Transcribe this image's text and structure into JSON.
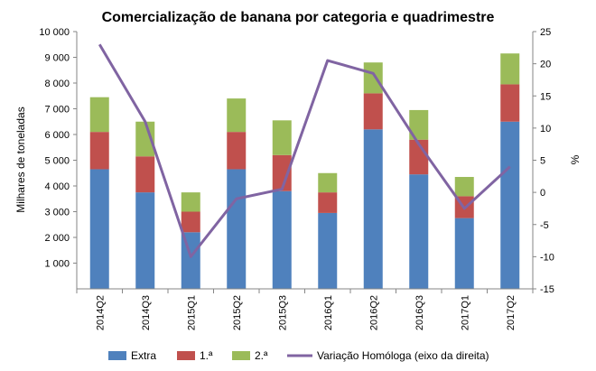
{
  "chart_data": {
    "type": "bar",
    "stacked": true,
    "title": "Comercialização  de banana  por  categoria  e quadrimestre",
    "ylabel": "Milhares de toneladas",
    "y2label": "%",
    "categories": [
      "2014Q2",
      "2014Q3",
      "2015Q1",
      "2015Q2",
      "2015Q3",
      "2016Q1",
      "2016Q2",
      "2016Q3",
      "2017Q1",
      "2017Q2"
    ],
    "ylim": [
      0,
      10000
    ],
    "y2lim": [
      -15,
      25
    ],
    "y_ticks": [
      "1 000",
      "2 000",
      "3 000",
      "4 000",
      "5 000",
      "6 000",
      "7 000",
      "8 000",
      "9 000",
      "10 000"
    ],
    "y2_ticks": [
      "-15",
      "-10",
      "-5",
      "0",
      "5",
      "10",
      "15",
      "20",
      "25"
    ],
    "series": [
      {
        "name": "Extra",
        "color": "#4F81BD",
        "values": [
          4650,
          3750,
          2200,
          4650,
          3800,
          2950,
          6200,
          4450,
          2750,
          6500
        ]
      },
      {
        "name": "1.ª",
        "color": "#C0504D",
        "values": [
          1450,
          1400,
          800,
          1450,
          1400,
          800,
          1400,
          1350,
          850,
          1450
        ]
      },
      {
        "name": "2.ª",
        "color": "#9BBB59",
        "values": [
          1350,
          1350,
          750,
          1300,
          1350,
          750,
          1200,
          1150,
          750,
          1200
        ]
      },
      {
        "name": "Variação Homóloga (eixo da direita)",
        "color": "#8064A2",
        "type": "line",
        "axis": "right",
        "values": [
          23,
          11,
          -10,
          -1,
          0.5,
          20.5,
          18.5,
          7.5,
          -2.5,
          4
        ]
      }
    ],
    "legend_position": "bottom",
    "grid": false
  }
}
